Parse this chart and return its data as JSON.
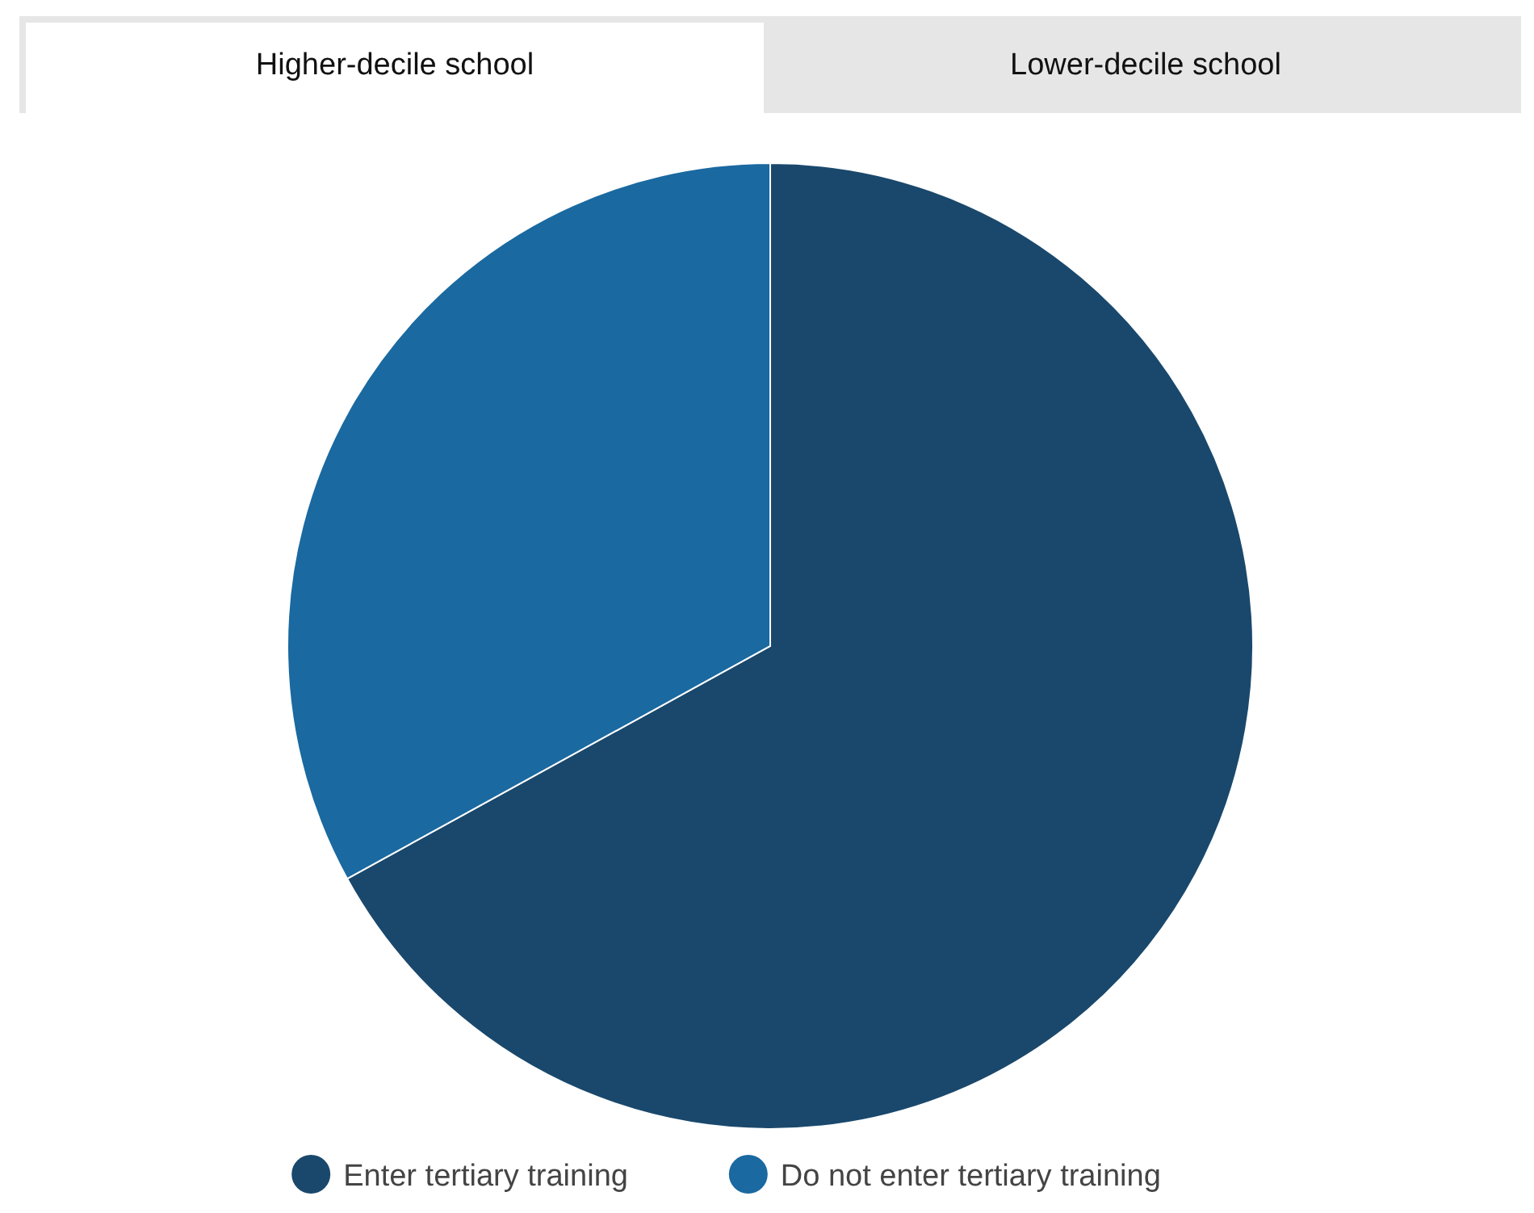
{
  "chart_data": {
    "type": "pie",
    "annotations": [
      "Higher-decile school",
      "Lower-decile school"
    ],
    "categories": [
      "Enter tertiary training",
      "Do not enter tertiary training"
    ],
    "values": [
      67,
      33
    ],
    "colors": [
      "#1a486c",
      "#1a69a0"
    ],
    "legend": "bottom"
  }
}
